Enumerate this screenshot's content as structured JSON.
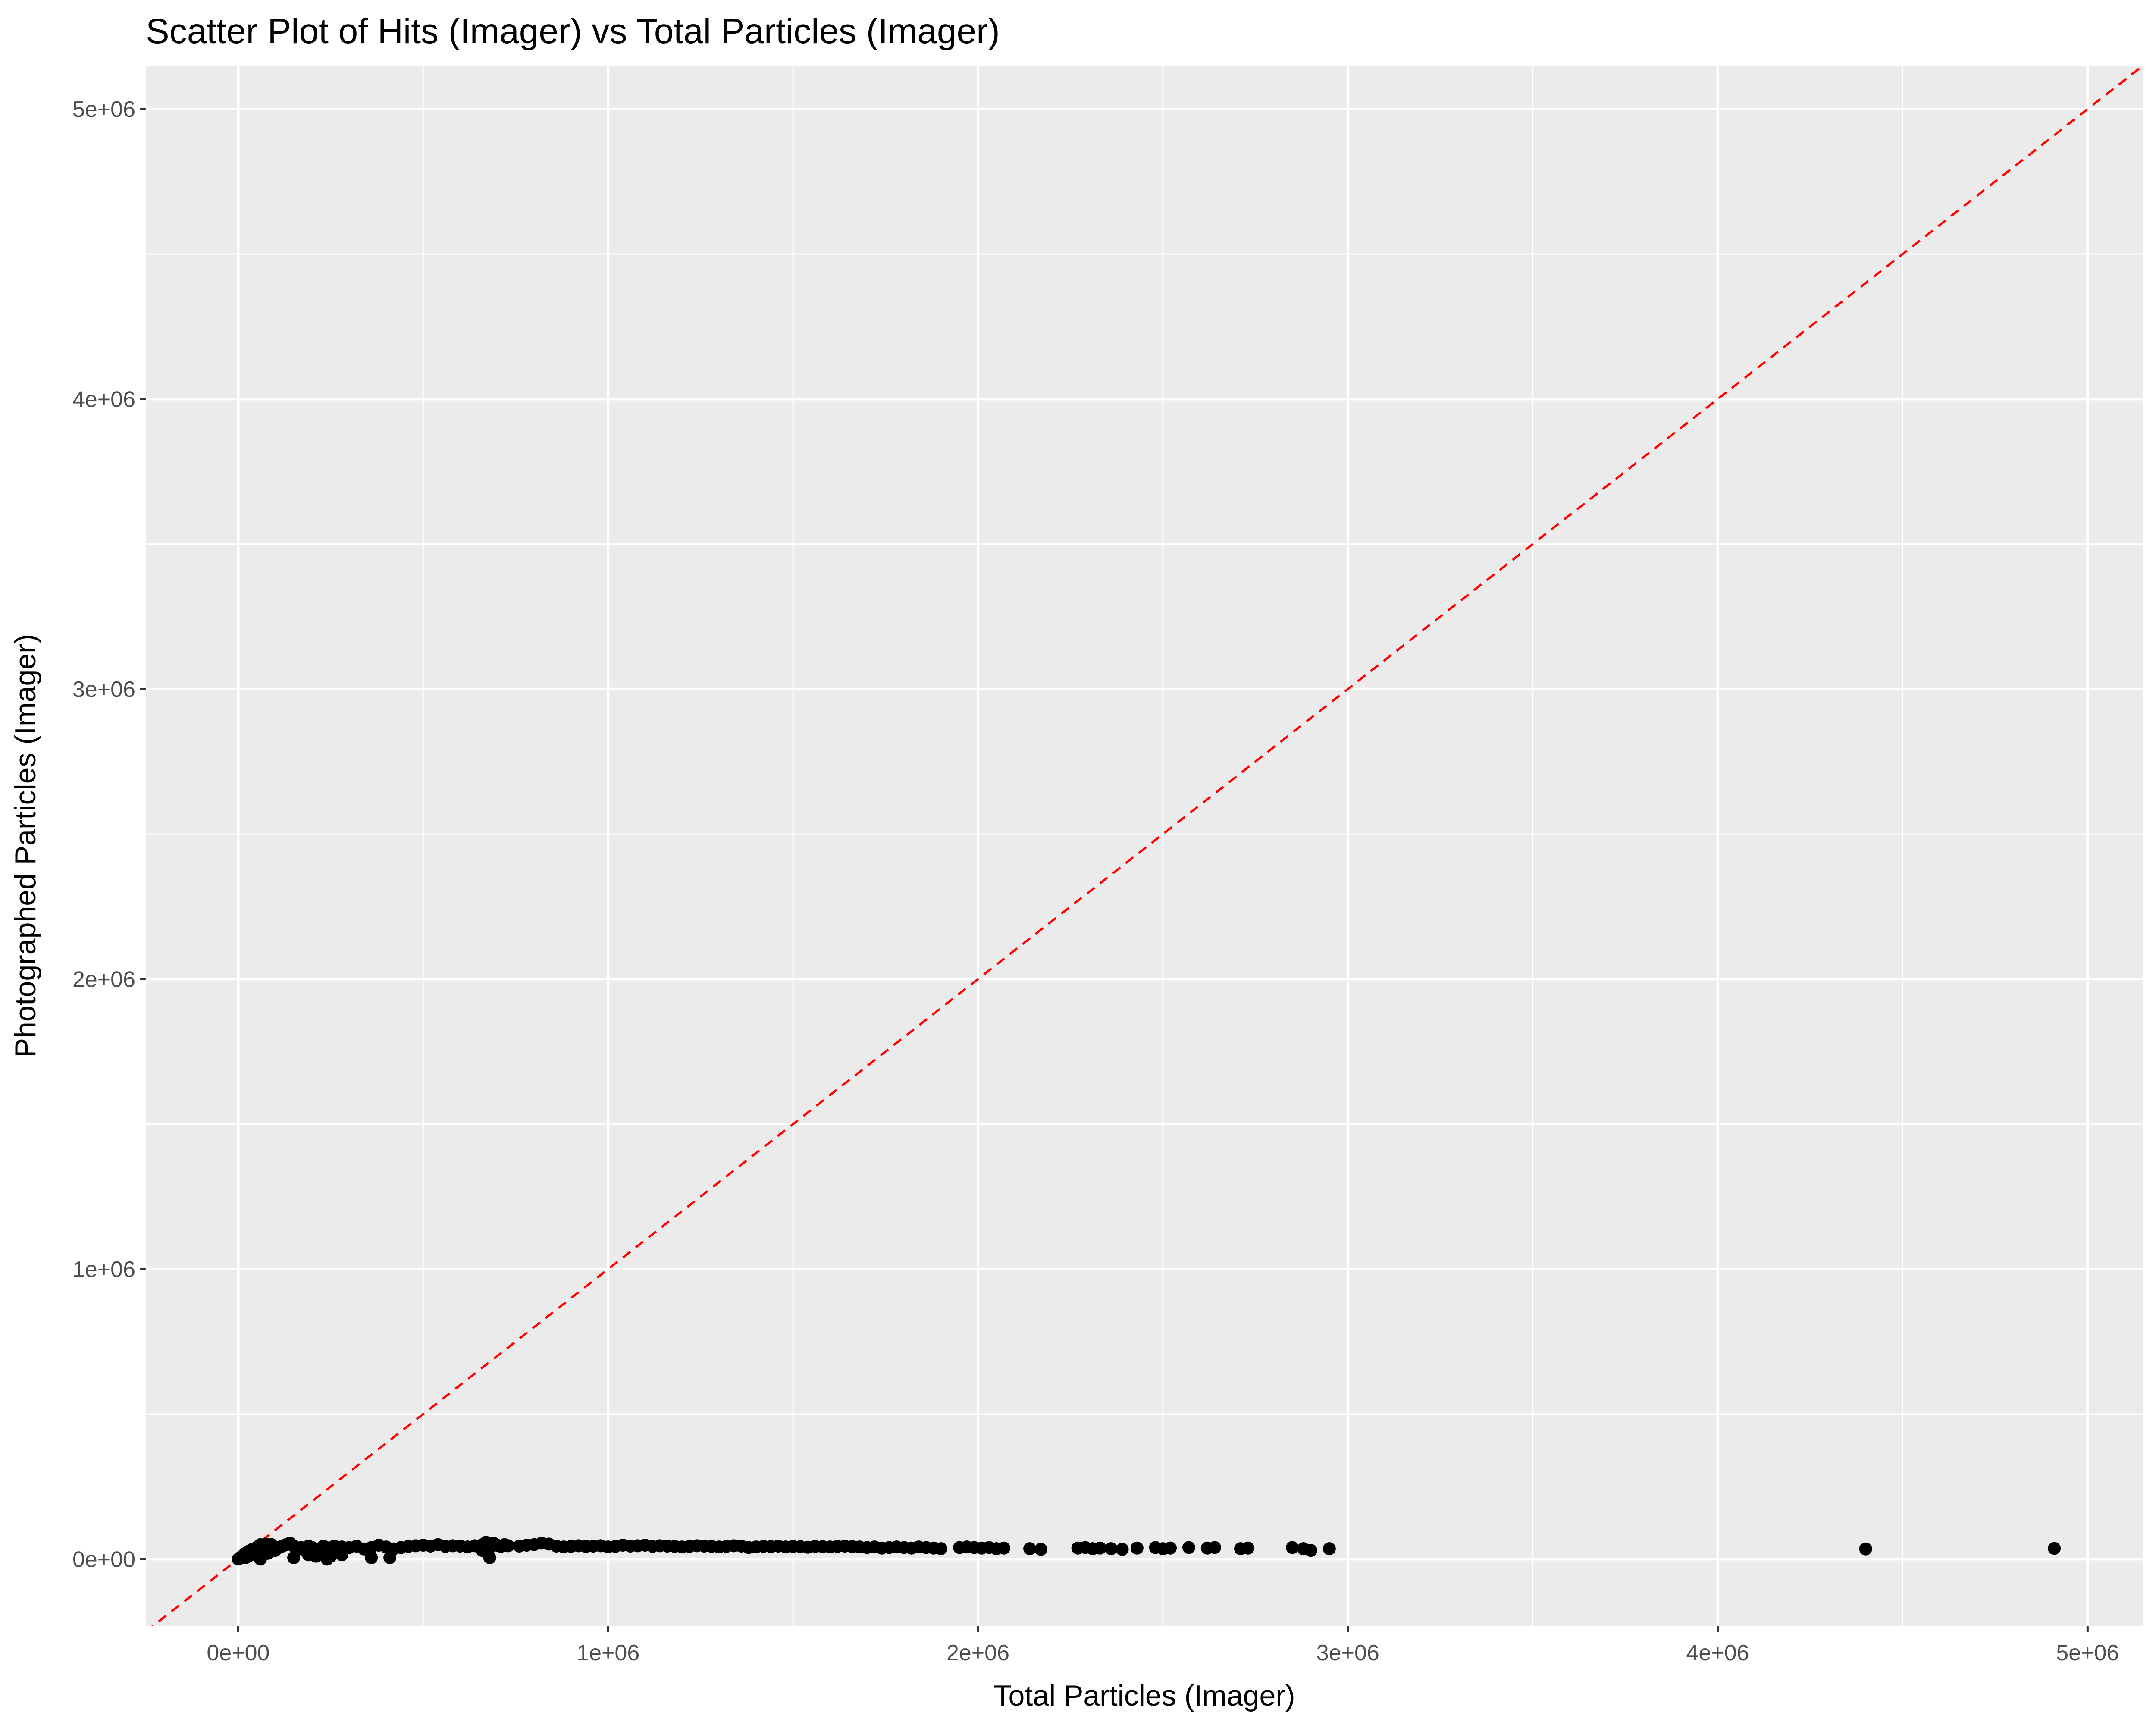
{
  "chart_data": {
    "type": "scatter",
    "title": "Scatter Plot of Hits (Imager) vs Total Particles (Imager)",
    "xlabel": "Total Particles (Imager)",
    "ylabel": "Photographed Particles (Imager)",
    "xlim": [
      -250000,
      5150000
    ],
    "ylim": [
      -230000,
      5150000
    ],
    "x_ticks": [
      0,
      1000000,
      2000000,
      3000000,
      4000000,
      5000000
    ],
    "x_tick_labels": [
      "0e+00",
      "1e+06",
      "2e+06",
      "3e+06",
      "4e+06",
      "5e+06"
    ],
    "y_ticks": [
      0,
      1000000,
      2000000,
      3000000,
      4000000,
      5000000
    ],
    "y_tick_labels": [
      "0e+00",
      "1e+06",
      "2e+06",
      "3e+06",
      "4e+06",
      "5e+06"
    ],
    "grid": true,
    "panel_background": "#ebebeb",
    "grid_color": "#ffffff",
    "point_color": "#000000",
    "reference_line": {
      "slope": 1,
      "intercept": 0,
      "color": "#ff0000",
      "style": "dashed"
    },
    "points": [
      [
        0,
        0
      ],
      [
        5000,
        5000
      ],
      [
        10000,
        10000
      ],
      [
        15000,
        15000
      ],
      [
        20000,
        20000
      ],
      [
        25000,
        22000
      ],
      [
        30000,
        28000
      ],
      [
        35000,
        20000
      ],
      [
        40000,
        35000
      ],
      [
        45000,
        30000
      ],
      [
        50000,
        40000
      ],
      [
        55000,
        45000
      ],
      [
        60000,
        50000
      ],
      [
        65000,
        42000
      ],
      [
        70000,
        48000
      ],
      [
        75000,
        52000
      ],
      [
        80000,
        38000
      ],
      [
        85000,
        45000
      ],
      [
        90000,
        50000
      ],
      [
        95000,
        40000
      ],
      [
        20000,
        5000
      ],
      [
        30000,
        12000
      ],
      [
        50000,
        15000
      ],
      [
        60000,
        8000
      ],
      [
        80000,
        20000
      ],
      [
        100000,
        30000
      ],
      [
        110000,
        40000
      ],
      [
        120000,
        45000
      ],
      [
        130000,
        50000
      ],
      [
        140000,
        55000
      ],
      [
        150000,
        45000
      ],
      [
        160000,
        35000
      ],
      [
        170000,
        40000
      ],
      [
        180000,
        30000
      ],
      [
        190000,
        45000
      ],
      [
        200000,
        40000
      ],
      [
        210000,
        25000
      ],
      [
        220000,
        35000
      ],
      [
        230000,
        45000
      ],
      [
        240000,
        30000
      ],
      [
        250000,
        40000
      ],
      [
        260000,
        45000
      ],
      [
        270000,
        35000
      ],
      [
        280000,
        42000
      ],
      [
        290000,
        38000
      ],
      [
        300000,
        40000
      ],
      [
        320000,
        45000
      ],
      [
        340000,
        35000
      ],
      [
        360000,
        40000
      ],
      [
        380000,
        48000
      ],
      [
        400000,
        42000
      ],
      [
        420000,
        35000
      ],
      [
        440000,
        40000
      ],
      [
        460000,
        44000
      ],
      [
        480000,
        46000
      ],
      [
        500000,
        48000
      ],
      [
        520000,
        45000
      ],
      [
        540000,
        50000
      ],
      [
        560000,
        44000
      ],
      [
        580000,
        46000
      ],
      [
        150000,
        5000
      ],
      [
        240000,
        0
      ],
      [
        250000,
        10000
      ],
      [
        280000,
        15000
      ],
      [
        360000,
        5000
      ],
      [
        410000,
        5000
      ],
      [
        60000,
        0
      ],
      [
        190000,
        15000
      ],
      [
        210000,
        10000
      ],
      [
        600000,
        45000
      ],
      [
        620000,
        42000
      ],
      [
        640000,
        46000
      ],
      [
        660000,
        50000
      ],
      [
        670000,
        58000
      ],
      [
        680000,
        40000
      ],
      [
        690000,
        55000
      ],
      [
        700000,
        48000
      ],
      [
        710000,
        44000
      ],
      [
        720000,
        50000
      ],
      [
        730000,
        46000
      ],
      [
        680000,
        5000
      ],
      [
        660000,
        30000
      ],
      [
        760000,
        45000
      ],
      [
        780000,
        48000
      ],
      [
        800000,
        50000
      ],
      [
        820000,
        55000
      ],
      [
        840000,
        52000
      ],
      [
        860000,
        45000
      ],
      [
        880000,
        42000
      ],
      [
        900000,
        44000
      ],
      [
        920000,
        46000
      ],
      [
        940000,
        44000
      ],
      [
        960000,
        45000
      ],
      [
        980000,
        46000
      ],
      [
        1000000,
        42000
      ],
      [
        1020000,
        44000
      ],
      [
        1040000,
        48000
      ],
      [
        1060000,
        45000
      ],
      [
        1080000,
        46000
      ],
      [
        1100000,
        48000
      ],
      [
        1120000,
        44000
      ],
      [
        1140000,
        46000
      ],
      [
        1160000,
        45000
      ],
      [
        1180000,
        44000
      ],
      [
        1200000,
        42000
      ],
      [
        1220000,
        44000
      ],
      [
        1240000,
        46000
      ],
      [
        1260000,
        45000
      ],
      [
        1280000,
        44000
      ],
      [
        1300000,
        42000
      ],
      [
        1320000,
        44000
      ],
      [
        1340000,
        46000
      ],
      [
        1360000,
        45000
      ],
      [
        1380000,
        40000
      ],
      [
        1400000,
        42000
      ],
      [
        1420000,
        44000
      ],
      [
        1440000,
        43000
      ],
      [
        1460000,
        45000
      ],
      [
        1480000,
        42000
      ],
      [
        1500000,
        44000
      ],
      [
        1520000,
        43000
      ],
      [
        1540000,
        41000
      ],
      [
        1560000,
        44000
      ],
      [
        1580000,
        43000
      ],
      [
        1600000,
        42000
      ],
      [
        1620000,
        44000
      ],
      [
        1640000,
        45000
      ],
      [
        1660000,
        43000
      ],
      [
        1680000,
        42000
      ],
      [
        1700000,
        40000
      ],
      [
        1720000,
        42000
      ],
      [
        1740000,
        38000
      ],
      [
        1760000,
        40000
      ],
      [
        1780000,
        42000
      ],
      [
        1800000,
        40000
      ],
      [
        1820000,
        38000
      ],
      [
        1840000,
        42000
      ],
      [
        1860000,
        40000
      ],
      [
        1880000,
        38000
      ],
      [
        1900000,
        36000
      ],
      [
        1950000,
        40000
      ],
      [
        1970000,
        42000
      ],
      [
        1990000,
        40000
      ],
      [
        2010000,
        38000
      ],
      [
        2030000,
        40000
      ],
      [
        2050000,
        36000
      ],
      [
        2070000,
        38000
      ],
      [
        2140000,
        36000
      ],
      [
        2170000,
        34000
      ],
      [
        2270000,
        38000
      ],
      [
        2290000,
        40000
      ],
      [
        2310000,
        36000
      ],
      [
        2330000,
        38000
      ],
      [
        2360000,
        36000
      ],
      [
        2390000,
        34000
      ],
      [
        2430000,
        38000
      ],
      [
        2480000,
        40000
      ],
      [
        2500000,
        36000
      ],
      [
        2520000,
        38000
      ],
      [
        2570000,
        40000
      ],
      [
        2620000,
        38000
      ],
      [
        2640000,
        40000
      ],
      [
        2710000,
        36000
      ],
      [
        2730000,
        38000
      ],
      [
        2850000,
        40000
      ],
      [
        2880000,
        36000
      ],
      [
        2900000,
        30000
      ],
      [
        2950000,
        36000
      ],
      [
        4400000,
        35000
      ],
      [
        4910000,
        37000
      ]
    ]
  }
}
